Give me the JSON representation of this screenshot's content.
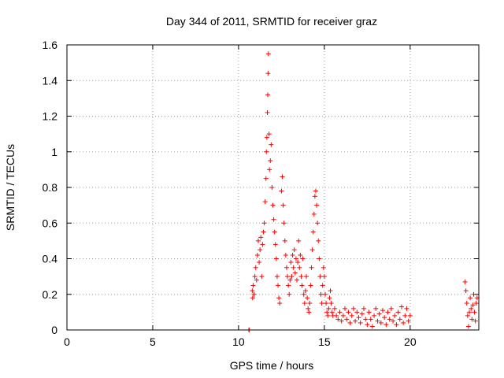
{
  "chart_data": {
    "type": "scatter",
    "title": "Day 344 of 2011, SRMTID for receiver graz",
    "xlabel": "GPS time / hours",
    "ylabel": "SRMTID / TECUs",
    "xlim": [
      0,
      24
    ],
    "ylim": [
      0,
      1.6
    ],
    "xticks": [
      0,
      5,
      10,
      15,
      20
    ],
    "xtick_labels": [
      "0",
      "5",
      "10",
      "15",
      "20"
    ],
    "yticks": [
      0,
      0.2,
      0.4,
      0.6,
      0.8,
      1,
      1.2,
      1.4,
      1.6
    ],
    "ytick_labels": [
      "0",
      "0.2",
      "0.4",
      "0.6",
      "0.8",
      "1",
      "1.2",
      "1.4",
      "1.6"
    ],
    "grid": true,
    "marker": "+",
    "color": "#ff0000",
    "series": [
      {
        "name": "SRMTID",
        "points": [
          [
            10.6,
            0.0
          ],
          [
            10.62,
            0.0
          ],
          [
            10.8,
            0.22
          ],
          [
            10.82,
            0.18
          ],
          [
            10.85,
            0.25
          ],
          [
            10.9,
            0.2
          ],
          [
            10.95,
            0.3
          ],
          [
            11.0,
            0.35
          ],
          [
            11.05,
            0.28
          ],
          [
            11.1,
            0.42
          ],
          [
            11.15,
            0.5
          ],
          [
            11.2,
            0.38
          ],
          [
            11.25,
            0.45
          ],
          [
            11.3,
            0.52
          ],
          [
            11.35,
            0.3
          ],
          [
            11.4,
            0.48
          ],
          [
            11.45,
            0.55
          ],
          [
            11.5,
            0.6
          ],
          [
            11.55,
            0.72
          ],
          [
            11.6,
            0.85
          ],
          [
            11.62,
            1.0
          ],
          [
            11.65,
            1.08
          ],
          [
            11.68,
            1.22
          ],
          [
            11.7,
            1.32
          ],
          [
            11.72,
            1.44
          ],
          [
            11.74,
            1.55
          ],
          [
            11.78,
            1.1
          ],
          [
            11.8,
            0.9
          ],
          [
            11.85,
            0.95
          ],
          [
            11.9,
            1.04
          ],
          [
            11.95,
            0.8
          ],
          [
            12.0,
            0.7
          ],
          [
            12.05,
            0.62
          ],
          [
            12.1,
            0.55
          ],
          [
            12.15,
            0.48
          ],
          [
            12.2,
            0.4
          ],
          [
            12.25,
            0.3
          ],
          [
            12.3,
            0.25
          ],
          [
            12.35,
            0.18
          ],
          [
            12.4,
            0.15
          ],
          [
            12.5,
            0.78
          ],
          [
            12.55,
            0.86
          ],
          [
            12.6,
            0.7
          ],
          [
            12.65,
            0.6
          ],
          [
            12.7,
            0.5
          ],
          [
            12.75,
            0.42
          ],
          [
            12.8,
            0.35
          ],
          [
            12.85,
            0.3
          ],
          [
            12.9,
            0.25
          ],
          [
            12.95,
            0.2
          ],
          [
            13.0,
            0.28
          ],
          [
            13.05,
            0.38
          ],
          [
            13.1,
            0.3
          ],
          [
            13.15,
            0.42
          ],
          [
            13.2,
            0.35
          ],
          [
            13.25,
            0.45
          ],
          [
            13.3,
            0.32
          ],
          [
            13.35,
            0.4
          ],
          [
            13.4,
            0.28
          ],
          [
            13.45,
            0.38
          ],
          [
            13.5,
            0.5
          ],
          [
            13.55,
            0.35
          ],
          [
            13.6,
            0.42
          ],
          [
            13.65,
            0.3
          ],
          [
            13.7,
            0.25
          ],
          [
            13.75,
            0.4
          ],
          [
            13.8,
            0.2
          ],
          [
            13.85,
            0.15
          ],
          [
            13.9,
            0.22
          ],
          [
            13.95,
            0.3
          ],
          [
            14.0,
            0.18
          ],
          [
            14.05,
            0.12
          ],
          [
            14.1,
            0.1
          ],
          [
            14.15,
            0.15
          ],
          [
            14.2,
            0.25
          ],
          [
            14.25,
            0.35
          ],
          [
            14.3,
            0.45
          ],
          [
            14.35,
            0.55
          ],
          [
            14.4,
            0.65
          ],
          [
            14.45,
            0.75
          ],
          [
            14.5,
            0.78
          ],
          [
            14.55,
            0.7
          ],
          [
            14.6,
            0.6
          ],
          [
            14.65,
            0.5
          ],
          [
            14.7,
            0.4
          ],
          [
            14.75,
            0.3
          ],
          [
            14.8,
            0.2
          ],
          [
            14.85,
            0.15
          ],
          [
            14.9,
            0.25
          ],
          [
            14.95,
            0.35
          ],
          [
            15.0,
            0.3
          ],
          [
            15.05,
            0.2
          ],
          [
            15.1,
            0.15
          ],
          [
            15.15,
            0.1
          ],
          [
            15.2,
            0.08
          ],
          [
            15.25,
            0.12
          ],
          [
            15.3,
            0.18
          ],
          [
            15.35,
            0.22
          ],
          [
            15.4,
            0.15
          ],
          [
            15.45,
            0.1
          ],
          [
            15.5,
            0.08
          ],
          [
            15.6,
            0.12
          ],
          [
            15.7,
            0.08
          ],
          [
            15.8,
            0.06
          ],
          [
            15.9,
            0.1
          ],
          [
            16.0,
            0.05
          ],
          [
            16.1,
            0.08
          ],
          [
            16.2,
            0.12
          ],
          [
            16.3,
            0.06
          ],
          [
            16.4,
            0.1
          ],
          [
            16.5,
            0.04
          ],
          [
            16.6,
            0.08
          ],
          [
            16.7,
            0.12
          ],
          [
            16.8,
            0.05
          ],
          [
            16.9,
            0.1
          ],
          [
            17.0,
            0.07
          ],
          [
            17.1,
            0.04
          ],
          [
            17.2,
            0.09
          ],
          [
            17.3,
            0.12
          ],
          [
            17.4,
            0.06
          ],
          [
            17.5,
            0.03
          ],
          [
            17.6,
            0.1
          ],
          [
            17.7,
            0.06
          ],
          [
            17.8,
            0.02
          ],
          [
            17.9,
            0.08
          ],
          [
            18.0,
            0.12
          ],
          [
            18.1,
            0.05
          ],
          [
            18.2,
            0.09
          ],
          [
            18.3,
            0.04
          ],
          [
            18.4,
            0.11
          ],
          [
            18.5,
            0.07
          ],
          [
            18.6,
            0.03
          ],
          [
            18.7,
            0.1
          ],
          [
            18.8,
            0.06
          ],
          [
            18.9,
            0.12
          ],
          [
            19.0,
            0.05
          ],
          [
            19.1,
            0.08
          ],
          [
            19.2,
            0.03
          ],
          [
            19.3,
            0.1
          ],
          [
            19.4,
            0.06
          ],
          [
            19.5,
            0.13
          ],
          [
            19.6,
            0.04
          ],
          [
            19.7,
            0.08
          ],
          [
            19.8,
            0.12
          ],
          [
            19.9,
            0.05
          ],
          [
            20.0,
            0.08
          ],
          [
            23.2,
            0.27
          ],
          [
            23.25,
            0.22
          ],
          [
            23.3,
            0.15
          ],
          [
            23.35,
            0.08
          ],
          [
            23.4,
            0.02
          ],
          [
            23.45,
            0.1
          ],
          [
            23.5,
            0.18
          ],
          [
            23.55,
            0.12
          ],
          [
            23.6,
            0.06
          ],
          [
            23.65,
            0.14
          ],
          [
            23.7,
            0.2
          ],
          [
            23.75,
            0.1
          ],
          [
            23.8,
            0.05
          ],
          [
            23.85,
            0.15
          ],
          [
            23.9,
            0.18
          ]
        ]
      }
    ]
  }
}
